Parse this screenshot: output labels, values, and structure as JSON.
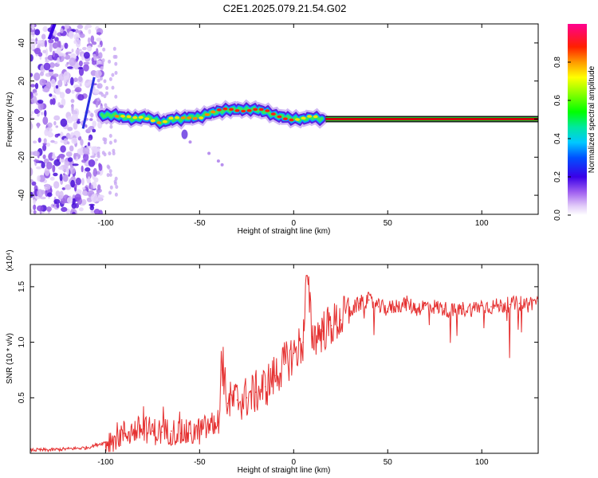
{
  "title": "C2E1.2025.079.21.54.G02",
  "colors": {
    "trace": "#e53030",
    "line": "#000000",
    "band": "#7a0000"
  },
  "spectrogram": {
    "type": "heatmap",
    "xlabel": "Height of straight line (km)",
    "ylabel": "Frequency (Hz)",
    "xlim": [
      -140,
      130
    ],
    "ylim": [
      -50,
      50
    ],
    "xticks": [
      -100,
      -50,
      0,
      50,
      100
    ],
    "xtick_labels": [
      "-100",
      "-50",
      "0",
      "50",
      "100"
    ],
    "yticks": [
      -40,
      -20,
      0,
      20,
      40
    ],
    "ytick_labels": [
      "-40",
      "-20",
      "0",
      "20",
      "40"
    ],
    "ridge_x": [
      -102,
      -95,
      -90,
      -85,
      -80,
      -75,
      -70,
      -65,
      -60,
      -55,
      -50,
      -45,
      -40,
      -35,
      -30,
      -25,
      -20,
      -15,
      -10,
      -5,
      0,
      5,
      10,
      15
    ],
    "ridge_y": [
      2,
      2,
      1,
      0,
      1,
      0,
      -2,
      0,
      0,
      1,
      1,
      3,
      4,
      5,
      5,
      5,
      5,
      4,
      2,
      1,
      0,
      0,
      1,
      0
    ],
    "steady_line": {
      "start": 17,
      "end": 130,
      "freq": 0
    }
  },
  "colorbar": {
    "label": "Normalized spectral amplitude",
    "ticks": [
      0.0,
      0.2,
      0.4,
      0.6,
      0.8
    ],
    "tick_labels": [
      "0.0",
      "0.2",
      "0.4",
      "0.6",
      "0.8"
    ],
    "range": [
      0,
      1
    ]
  },
  "chart_data": {
    "type": "line",
    "title": "",
    "xlabel": "Height of straight line (km)",
    "ylabel": "SNR (10 * v/v)",
    "y_multiplier": "(x10⁴)",
    "xlim": [
      -140,
      130
    ],
    "ylim": [
      0,
      1.7
    ],
    "xticks": [
      -100,
      -50,
      0,
      50,
      100
    ],
    "xtick_labels": [
      "-100",
      "-50",
      "0",
      "50",
      "100"
    ],
    "yticks": [
      0.5,
      1.0,
      1.5
    ],
    "ytick_labels": [
      "0.5",
      "1.0",
      "1.5"
    ],
    "x": [
      -140,
      -130,
      -120,
      -110,
      -100,
      -95,
      -90,
      -85,
      -80,
      -75,
      -70,
      -65,
      -60,
      -55,
      -50,
      -45,
      -40,
      -38,
      -35,
      -30,
      -25,
      -20,
      -15,
      -10,
      -5,
      0,
      5,
      7,
      10,
      15,
      20,
      25,
      30,
      35,
      40,
      45,
      50,
      55,
      60,
      65,
      70,
      75,
      80,
      85,
      90,
      95,
      100,
      105,
      110,
      115,
      120,
      125,
      130
    ],
    "values": [
      0.03,
      0.03,
      0.04,
      0.05,
      0.1,
      0.15,
      0.18,
      0.2,
      0.22,
      0.2,
      0.19,
      0.2,
      0.18,
      0.18,
      0.2,
      0.24,
      0.28,
      0.75,
      0.45,
      0.48,
      0.5,
      0.55,
      0.6,
      0.7,
      0.8,
      0.9,
      1.0,
      1.6,
      1.05,
      1.1,
      1.15,
      1.2,
      1.28,
      1.35,
      1.38,
      1.32,
      1.3,
      1.33,
      1.35,
      1.3,
      1.33,
      1.32,
      1.3,
      1.28,
      1.3,
      1.3,
      1.33,
      1.32,
      1.33,
      1.34,
      1.35,
      1.35,
      1.37
    ]
  }
}
